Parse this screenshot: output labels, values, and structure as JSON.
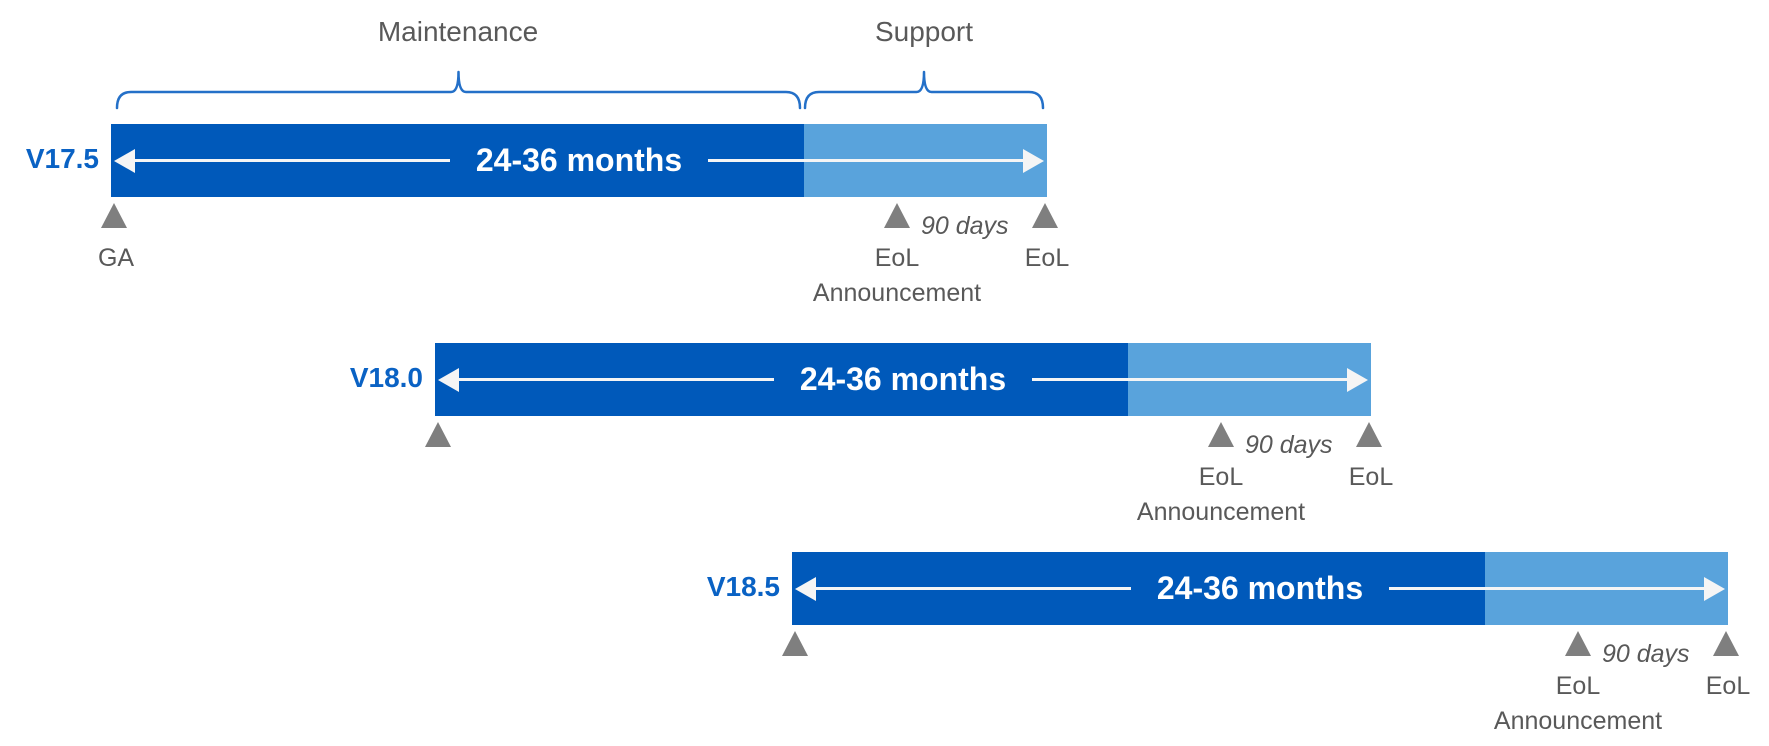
{
  "section_labels": {
    "maintenance": "Maintenance",
    "support": "Support"
  },
  "rows": [
    {
      "version": "V17.5",
      "duration": "24-36 months",
      "ga_label": "GA",
      "show_ga_label": true,
      "eol_announcement_line1": "EoL",
      "eol_announcement_line2": "Announcement",
      "ninety_days": "90 days",
      "eol_label": "EoL"
    },
    {
      "version": "V18.0",
      "duration": "24-36 months",
      "ga_label": "",
      "show_ga_label": false,
      "eol_announcement_line1": "EoL",
      "eol_announcement_line2": "Announcement",
      "ninety_days": "90 days",
      "eol_label": "EoL"
    },
    {
      "version": "V18.5",
      "duration": "24-36 months",
      "ga_label": "",
      "show_ga_label": false,
      "eol_announcement_line1": "EoL",
      "eol_announcement_line2": "Announcement",
      "ninety_days": "90 days",
      "eol_label": "EoL"
    }
  ],
  "colors": {
    "maintenance_bar": "#0059BA",
    "support_bar": "#59A3DC",
    "brace": "#2470C8",
    "version_text": "#0A62C4",
    "label_text": "#595959",
    "marker": "#7F7F7F",
    "arrow": "#F5F5F5"
  }
}
